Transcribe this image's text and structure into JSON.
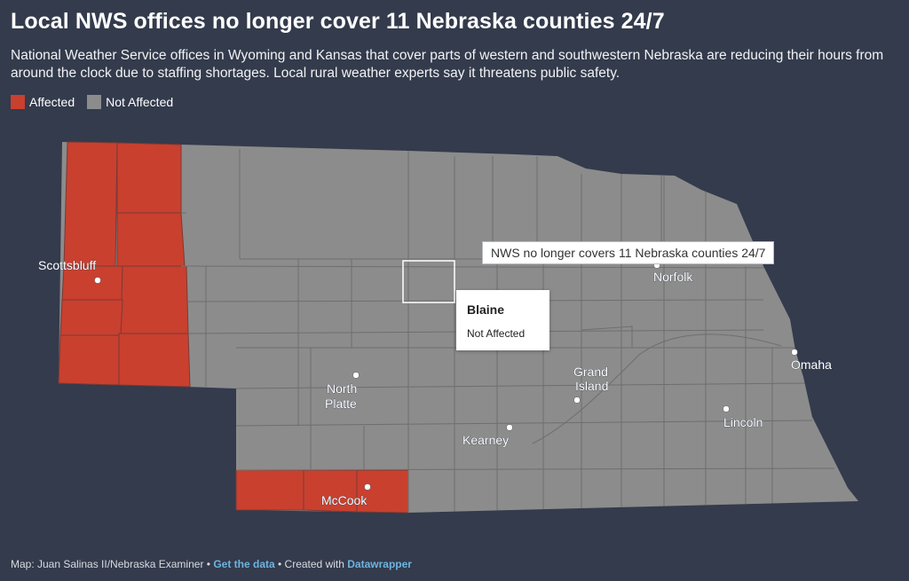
{
  "header": {
    "title": "Local NWS offices no longer cover 11 Nebraska counties 24/7",
    "subtitle": "National Weather Service offices in Wyoming and Kansas that cover parts of western and southwestern Nebraska are reducing their hours from around the clock due to staffing shortages. Local rural weather experts say it threatens public safety."
  },
  "legend": [
    {
      "label": "Affected",
      "color": "#c9402f"
    },
    {
      "label": "Not Affected",
      "color": "#8c8c8c"
    }
  ],
  "colors": {
    "background": "#333b4c",
    "affected": "#c9402f",
    "not_affected": "#8c8c8c",
    "county_border": "#6a6a6a"
  },
  "map": {
    "banner": "NWS no longer covers 11 Nebraska counties 24/7",
    "tooltip": {
      "county": "Blaine",
      "status": "Not Affected"
    },
    "cities": {
      "scottsbluff": "Scottsbluff",
      "north_platte": "North\nPlatte",
      "mccook": "McCook",
      "kearney": "Kearney",
      "grand_island": "Grand\nIsland",
      "norfolk": "Norfolk",
      "lincoln": "Lincoln",
      "omaha": "Omaha"
    }
  },
  "footer": {
    "credit": "Map: Juan Salinas II/Nebraska Examiner • ",
    "data_link": "Get the data",
    "sep": " • Created with ",
    "tool_link": "Datawrapper"
  }
}
